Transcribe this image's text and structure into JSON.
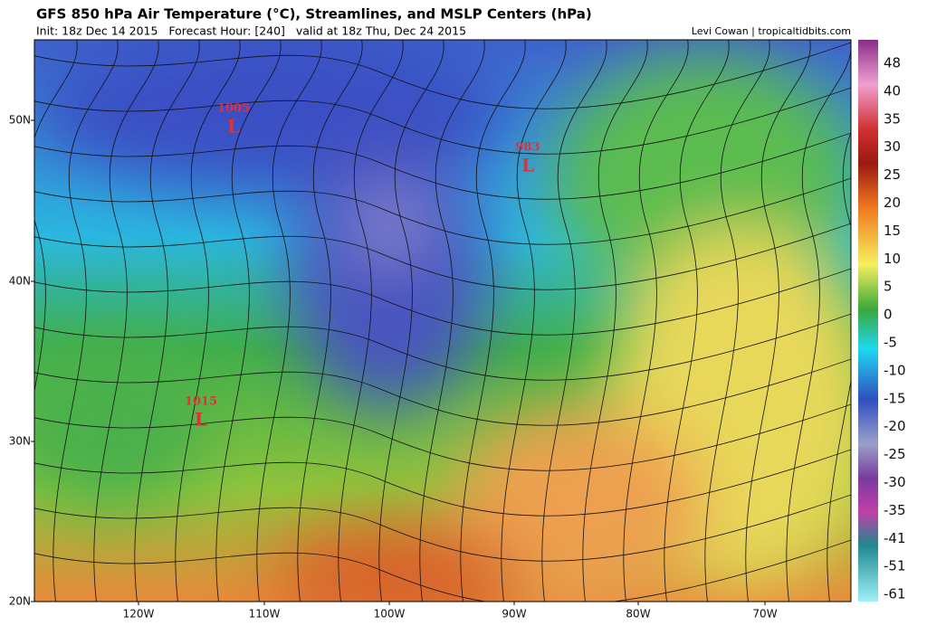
{
  "header": {
    "title": "GFS 850 hPa Air Temperature (°C), Streamlines, and MSLP Centers (hPa)",
    "subtitle": "Init: 18z Dec 14 2015   Forecast Hour: [240]   valid at 18z Thu, Dec 24 2015",
    "credit": "Levi Cowan | tropicaltidbits.com"
  },
  "map": {
    "lat_labels": [
      "50N",
      "40N",
      "30N",
      "20N"
    ],
    "lon_labels": [
      "120W",
      "110W",
      "100W",
      "90W",
      "80W",
      "70W"
    ],
    "lows": [
      {
        "pressure": "1005",
        "symbol": "L"
      },
      {
        "pressure": "983",
        "symbol": "L"
      },
      {
        "pressure": "1015",
        "symbol": "L"
      }
    ]
  },
  "colorbar": {
    "ticks": [
      48,
      40,
      35,
      30,
      25,
      20,
      15,
      10,
      5,
      0,
      -5,
      -10,
      -15,
      -20,
      -25,
      -30,
      -35,
      -41,
      -51,
      -61
    ]
  }
}
